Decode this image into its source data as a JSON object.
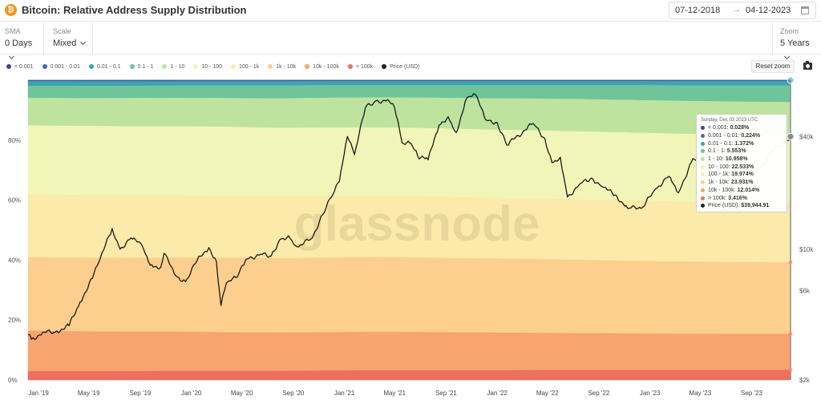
{
  "header": {
    "coin_symbol": "₿",
    "title": "Bitcoin: Relative Address Supply Distribution",
    "date_start": "07-12-2018",
    "date_arrow": "→",
    "date_end": "04-12-2023"
  },
  "controls": {
    "sma_label": "SMA",
    "sma_value": "0 Days",
    "scale_label": "Scale",
    "scale_value": "Mixed",
    "zoom_label": "Zoom",
    "zoom_value": "5 Years"
  },
  "toolbar": {
    "reset_zoom": "Reset zoom"
  },
  "watermark": "glassnode",
  "legend": [
    {
      "label": "< 0.001",
      "color": "#4b3f8f"
    },
    {
      "label": "0.001 - 0.01",
      "color": "#3b6fb6"
    },
    {
      "label": "0.01 - 0.1",
      "color": "#3ca4b3"
    },
    {
      "label": "0.1 - 1",
      "color": "#6fc49a"
    },
    {
      "label": "1 - 10",
      "color": "#bde39f"
    },
    {
      "label": "10 - 100",
      "color": "#f1f6b8"
    },
    {
      "label": "100 - 1k",
      "color": "#fbeaa9"
    },
    {
      "label": "1k - 10k",
      "color": "#fccf8f"
    },
    {
      "label": "10k - 100k",
      "color": "#f7a46e"
    },
    {
      "label": "> 100k",
      "color": "#ec6f5f"
    },
    {
      "label": "Price (USD)",
      "color": "#222222"
    }
  ],
  "tooltip": {
    "date": "Sunday, Dec 03 2023 UTC",
    "rows": [
      {
        "label": "< 0.001:",
        "value": "0.028%",
        "color": "#4b3f8f"
      },
      {
        "label": "0.001 - 0.01:",
        "value": "0.224%",
        "color": "#3b6fb6"
      },
      {
        "label": "0.01 - 0.1:",
        "value": "1.372%",
        "color": "#3ca4b3"
      },
      {
        "label": "0.1 - 1:",
        "value": "5.553%",
        "color": "#6fc49a"
      },
      {
        "label": "1 - 10:",
        "value": "10.958%",
        "color": "#bde39f"
      },
      {
        "label": "10 - 100:",
        "value": "22.533%",
        "color": "#f1f6b8"
      },
      {
        "label": "100 - 1k:",
        "value": "19.974%",
        "color": "#fbeaa9"
      },
      {
        "label": "1k - 10k:",
        "value": "23.931%",
        "color": "#fccf8f"
      },
      {
        "label": "10k - 100k:",
        "value": "12.014%",
        "color": "#f7a46e"
      },
      {
        "label": "> 100k:",
        "value": "3.416%",
        "color": "#ec6f5f"
      },
      {
        "label": "Price (USD):",
        "value": "$39,944.91",
        "color": "#222222"
      }
    ]
  },
  "chart_data": {
    "type": "area",
    "stacking": "percent",
    "x_ticks": [
      "Jan '19",
      "May '19",
      "Sep '19",
      "Jan '20",
      "May '20",
      "Sep '20",
      "Jan '21",
      "May '21",
      "Sep '21",
      "Jan '22",
      "May '22",
      "Sep '22",
      "Jan '23",
      "May '23",
      "Sep '23"
    ],
    "y_left": {
      "ticks": [
        "0%",
        "20%",
        "40%",
        "60%",
        "80%"
      ],
      "range": [
        0,
        100
      ]
    },
    "y_right": {
      "scale": "log",
      "ticks": [
        "$2k",
        "$6k",
        "$10k",
        "$40k"
      ],
      "values": [
        2000,
        6000,
        10000,
        40000
      ],
      "range": [
        2000,
        80000
      ]
    },
    "grid": false,
    "legend_position": "top-left",
    "x": [
      "2018-12",
      "2019-04",
      "2019-08",
      "2019-12",
      "2020-04",
      "2020-08",
      "2020-12",
      "2021-04",
      "2021-08",
      "2021-12",
      "2022-04",
      "2022-08",
      "2022-12",
      "2023-04",
      "2023-08",
      "2023-12"
    ],
    "series": [
      {
        "name": "> 100k",
        "values": [
          3.0,
          3.0,
          3.0,
          3.1,
          3.1,
          3.1,
          3.2,
          3.3,
          3.3,
          3.3,
          3.4,
          3.4,
          3.4,
          3.4,
          3.4,
          3.4
        ]
      },
      {
        "name": "10k - 100k",
        "values": [
          13.5,
          13.3,
          13.2,
          13.1,
          12.9,
          12.8,
          12.8,
          12.8,
          12.7,
          12.6,
          12.4,
          12.3,
          12.2,
          12.1,
          12.0,
          12.0
        ]
      },
      {
        "name": "1k - 10k",
        "values": [
          24.5,
          24.6,
          24.6,
          24.7,
          24.8,
          24.8,
          24.9,
          24.9,
          24.8,
          24.7,
          24.6,
          24.4,
          24.2,
          24.1,
          24.0,
          23.9
        ]
      },
      {
        "name": "100 - 1k",
        "values": [
          21.0,
          20.9,
          20.9,
          20.8,
          20.7,
          20.6,
          20.5,
          20.4,
          20.4,
          20.3,
          20.2,
          20.1,
          20.1,
          20.0,
          20.0,
          20.0
        ]
      },
      {
        "name": "10 - 100",
        "values": [
          23.0,
          23.0,
          23.0,
          23.0,
          23.0,
          22.9,
          22.9,
          22.8,
          22.8,
          22.7,
          22.7,
          22.7,
          22.6,
          22.6,
          22.5,
          22.5
        ]
      },
      {
        "name": "1 - 10",
        "values": [
          9.2,
          9.3,
          9.4,
          9.5,
          9.6,
          9.8,
          9.9,
          10.0,
          10.2,
          10.4,
          10.6,
          10.8,
          10.9,
          11.0,
          11.0,
          11.0
        ]
      },
      {
        "name": "0.1 - 1",
        "values": [
          4.0,
          4.1,
          4.1,
          4.1,
          4.2,
          4.3,
          4.2,
          4.1,
          4.2,
          4.4,
          4.5,
          4.7,
          5.0,
          5.2,
          5.4,
          5.6
        ]
      },
      {
        "name": "0.01 - 0.1",
        "values": [
          1.5,
          1.5,
          1.5,
          1.4,
          1.4,
          1.4,
          1.3,
          1.3,
          1.3,
          1.3,
          1.3,
          1.3,
          1.3,
          1.4,
          1.4,
          1.4
        ]
      },
      {
        "name": "0.001 - 0.01",
        "values": [
          0.25,
          0.25,
          0.25,
          0.25,
          0.25,
          0.25,
          0.22,
          0.22,
          0.22,
          0.22,
          0.22,
          0.22,
          0.22,
          0.22,
          0.22,
          0.22
        ]
      },
      {
        "name": "< 0.001",
        "values": [
          0.05,
          0.05,
          0.04,
          0.04,
          0.04,
          0.04,
          0.03,
          0.03,
          0.03,
          0.03,
          0.03,
          0.03,
          0.03,
          0.03,
          0.03,
          0.03
        ]
      }
    ],
    "price": {
      "name": "Price (USD)",
      "x": [
        "2018-12-07",
        "2018-12-15",
        "2019-01-15",
        "2019-02-10",
        "2019-03-15",
        "2019-04-10",
        "2019-05-10",
        "2019-05-25",
        "2019-06-26",
        "2019-07-15",
        "2019-08-10",
        "2019-09-05",
        "2019-09-25",
        "2019-10-20",
        "2019-10-28",
        "2019-11-25",
        "2019-12-18",
        "2020-01-15",
        "2020-02-12",
        "2020-03-01",
        "2020-03-12",
        "2020-03-25",
        "2020-04-20",
        "2020-05-10",
        "2020-06-15",
        "2020-07-10",
        "2020-07-30",
        "2020-08-20",
        "2020-09-10",
        "2020-10-15",
        "2020-11-10",
        "2020-12-01",
        "2020-12-20",
        "2021-01-08",
        "2021-01-25",
        "2021-02-20",
        "2021-03-13",
        "2021-04-14",
        "2021-05-01",
        "2021-05-19",
        "2021-06-10",
        "2021-06-25",
        "2021-07-20",
        "2021-08-15",
        "2021-09-06",
        "2021-09-25",
        "2021-10-20",
        "2021-11-10",
        "2021-12-05",
        "2022-01-01",
        "2022-01-24",
        "2022-03-28",
        "2022-04-25",
        "2022-05-12",
        "2022-06-01",
        "2022-06-18",
        "2022-07-20",
        "2022-08-15",
        "2022-09-10",
        "2022-10-10",
        "2022-11-09",
        "2022-12-15",
        "2023-01-15",
        "2023-02-15",
        "2023-03-10",
        "2023-04-14",
        "2023-05-15",
        "2023-06-15",
        "2023-07-15",
        "2023-08-20",
        "2023-09-20",
        "2023-10-25",
        "2023-11-15",
        "2023-12-03"
      ],
      "values": [
        3500,
        3300,
        3600,
        3600,
        3900,
        5200,
        7000,
        8500,
        12900,
        10000,
        11500,
        10500,
        8200,
        8000,
        9500,
        7200,
        6700,
        8700,
        10200,
        8600,
        5000,
        6600,
        7100,
        8800,
        9400,
        9200,
        11200,
        11800,
        10300,
        11400,
        15300,
        19000,
        23000,
        40000,
        32000,
        57000,
        61000,
        63000,
        57000,
        37000,
        36500,
        31500,
        30000,
        46000,
        51000,
        42000,
        64000,
        67000,
        49000,
        47500,
        36000,
        47000,
        39000,
        29000,
        31000,
        19000,
        22500,
        24000,
        21500,
        19500,
        16500,
        16800,
        21000,
        24500,
        20000,
        30500,
        27000,
        25000,
        30200,
        26000,
        27000,
        34500,
        37000,
        39945
      ]
    }
  }
}
